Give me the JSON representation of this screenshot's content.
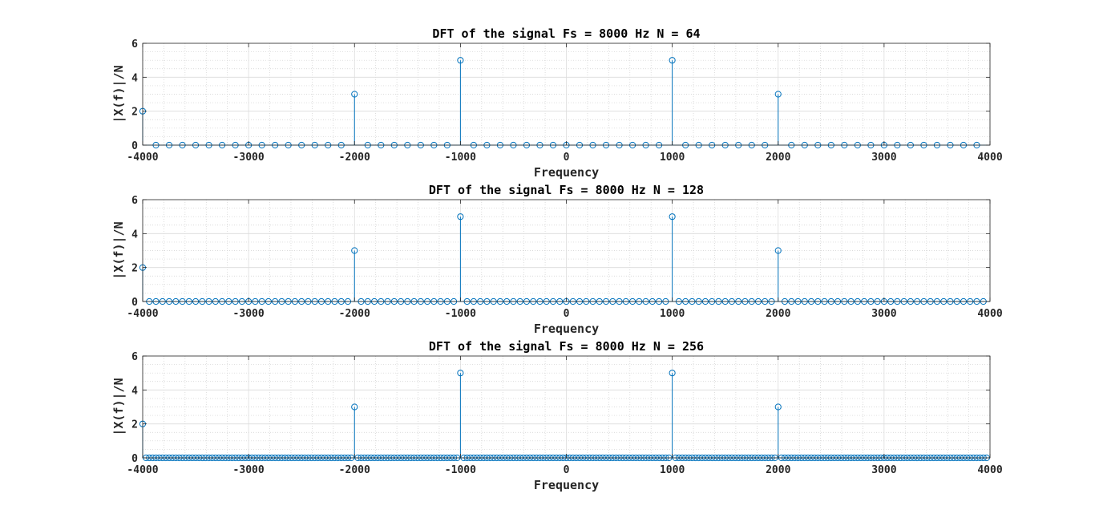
{
  "colors": {
    "series": "#0072BD",
    "axis": "#262626",
    "grid_major": "#dcdcdc",
    "grid_minor": "#cfcfcf"
  },
  "chart_data": [
    {
      "type": "stem",
      "title": "DFT of the signal Fs = 8000 Hz N = 64",
      "xlabel": "Frequency",
      "ylabel": "|X(f)|/N",
      "xlim": [
        -4000,
        4000
      ],
      "ylim": [
        0,
        6
      ],
      "xticks": [
        "-4000",
        "-3000",
        "-2000",
        "-1000",
        "0",
        "1000",
        "2000",
        "3000",
        "4000"
      ],
      "yticks": [
        "0",
        "2",
        "4",
        "6"
      ],
      "grid": "major and minor",
      "N": 64,
      "Fs": 8000,
      "x_start": -4000,
      "x_step": 125,
      "nonzero": [
        {
          "x": -4000,
          "y": 2
        },
        {
          "x": -2000,
          "y": 3
        },
        {
          "x": -1000,
          "y": 5
        },
        {
          "x": 1000,
          "y": 5
        },
        {
          "x": 2000,
          "y": 3
        }
      ],
      "other_values": 0
    },
    {
      "type": "stem",
      "title": "DFT of the signal Fs = 8000 Hz N = 128",
      "xlabel": "Frequency",
      "ylabel": "|X(f)|/N",
      "xlim": [
        -4000,
        4000
      ],
      "ylim": [
        0,
        6
      ],
      "xticks": [
        "-4000",
        "-3000",
        "-2000",
        "-1000",
        "0",
        "1000",
        "2000",
        "3000",
        "4000"
      ],
      "yticks": [
        "0",
        "2",
        "4",
        "6"
      ],
      "grid": "major and minor",
      "N": 128,
      "Fs": 8000,
      "x_start": -4000,
      "x_step": 62.5,
      "nonzero": [
        {
          "x": -4000,
          "y": 2
        },
        {
          "x": -2000,
          "y": 3
        },
        {
          "x": -1000,
          "y": 5
        },
        {
          "x": 1000,
          "y": 5
        },
        {
          "x": 2000,
          "y": 3
        }
      ],
      "other_values": 0
    },
    {
      "type": "stem",
      "title": "DFT of the signal Fs = 8000 Hz N = 256",
      "xlabel": "Frequency",
      "ylabel": "|X(f)|/N",
      "xlim": [
        -4000,
        4000
      ],
      "ylim": [
        0,
        6
      ],
      "xticks": [
        "-4000",
        "-3000",
        "-2000",
        "-1000",
        "0",
        "1000",
        "2000",
        "3000",
        "4000"
      ],
      "yticks": [
        "0",
        "2",
        "4",
        "6"
      ],
      "grid": "major and minor",
      "N": 256,
      "Fs": 8000,
      "x_start": -4000,
      "x_step": 31.25,
      "nonzero": [
        {
          "x": -4000,
          "y": 2
        },
        {
          "x": -2000,
          "y": 3
        },
        {
          "x": -1000,
          "y": 5
        },
        {
          "x": 1000,
          "y": 5
        },
        {
          "x": 2000,
          "y": 3
        }
      ],
      "other_values": 0
    }
  ]
}
